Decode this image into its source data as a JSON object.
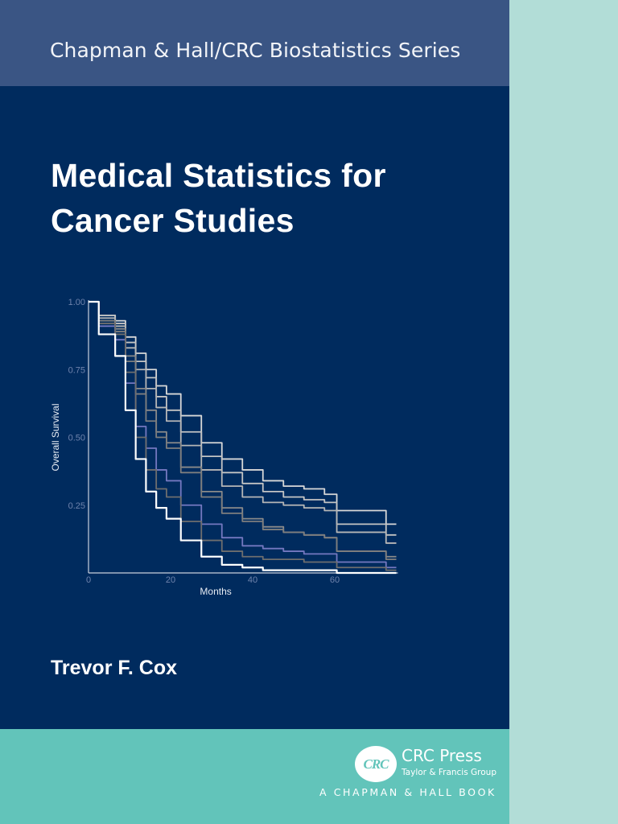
{
  "cover": {
    "series": "Chapman & Hall/CRC Biostatistics Series",
    "title_line1": "Medical Statistics for",
    "title_line2": "Cancer Studies",
    "author": "Trevor F. Cox",
    "publisher": {
      "logo_text": "CRC",
      "name": "CRC Press",
      "group": "Taylor & Francis Group",
      "imprint": "A CHAPMAN & HALL BOOK"
    },
    "colors": {
      "series_band": "#3a5584",
      "cover_background": "#002b5e",
      "bottom_band": "#62c4ba",
      "spine_strip": "#b2ddd7",
      "text": "#ffffff"
    }
  },
  "chart_data": {
    "type": "line",
    "title": "",
    "xlabel": "Months",
    "ylabel": "Overall Survival",
    "xlim": [
      0,
      75
    ],
    "ylim": [
      0,
      1.0
    ],
    "x_ticks": [
      "0",
      "20",
      "40",
      "60"
    ],
    "y_ticks": [
      "1.00",
      "0.75",
      "0.50",
      "0.25"
    ],
    "grid": false,
    "legend": "none",
    "x": [
      0,
      5,
      8,
      10,
      13,
      15,
      18,
      20,
      25,
      30,
      35,
      40,
      45,
      50,
      55,
      60,
      61,
      72,
      73,
      75
    ],
    "series": [
      {
        "name": "curve-1",
        "color": "#d8d8d8",
        "values": [
          1.0,
          0.95,
          0.93,
          0.87,
          0.81,
          0.75,
          0.69,
          0.66,
          0.58,
          0.48,
          0.42,
          0.38,
          0.34,
          0.32,
          0.31,
          0.29,
          0.23,
          0.23,
          0.18,
          0.18
        ]
      },
      {
        "name": "curve-2",
        "color": "#c4c4c4",
        "values": [
          1.0,
          0.95,
          0.92,
          0.85,
          0.78,
          0.72,
          0.65,
          0.6,
          0.52,
          0.43,
          0.37,
          0.33,
          0.3,
          0.28,
          0.27,
          0.26,
          0.18,
          0.18,
          0.14,
          0.14
        ]
      },
      {
        "name": "curve-3",
        "color": "#b6b6b6",
        "values": [
          1.0,
          0.94,
          0.91,
          0.83,
          0.75,
          0.68,
          0.61,
          0.56,
          0.47,
          0.38,
          0.32,
          0.28,
          0.26,
          0.25,
          0.24,
          0.23,
          0.15,
          0.15,
          0.11,
          0.11
        ]
      },
      {
        "name": "curve-4",
        "color": "#8a8a8a",
        "values": [
          1.0,
          0.93,
          0.9,
          0.8,
          0.68,
          0.6,
          0.52,
          0.48,
          0.39,
          0.3,
          0.24,
          0.2,
          0.17,
          0.15,
          0.14,
          0.13,
          0.08,
          0.08,
          0.06,
          0.06
        ]
      },
      {
        "name": "curve-5",
        "color": "#7e7e7e",
        "values": [
          1.0,
          0.93,
          0.89,
          0.78,
          0.66,
          0.56,
          0.5,
          0.46,
          0.37,
          0.28,
          0.22,
          0.19,
          0.16,
          0.15,
          0.14,
          0.13,
          0.08,
          0.08,
          0.05,
          0.05
        ]
      },
      {
        "name": "curve-6",
        "color": "#7478c0",
        "values": [
          1.0,
          0.91,
          0.86,
          0.7,
          0.54,
          0.46,
          0.38,
          0.34,
          0.25,
          0.18,
          0.13,
          0.1,
          0.09,
          0.08,
          0.07,
          0.07,
          0.04,
          0.04,
          0.02,
          0.02
        ]
      },
      {
        "name": "curve-7",
        "color": "#6e6e6e",
        "values": [
          1.0,
          0.92,
          0.88,
          0.74,
          0.5,
          0.38,
          0.31,
          0.28,
          0.19,
          0.12,
          0.08,
          0.06,
          0.05,
          0.05,
          0.04,
          0.04,
          0.02,
          0.02,
          0.01,
          0.01
        ]
      },
      {
        "name": "curve-8",
        "color": "#ffffff",
        "values": [
          1.0,
          0.88,
          0.8,
          0.6,
          0.42,
          0.3,
          0.24,
          0.2,
          0.12,
          0.06,
          0.03,
          0.02,
          0.01,
          0.01,
          0.01,
          0.01,
          0.0,
          0.0,
          0.0,
          0.0
        ]
      }
    ]
  }
}
